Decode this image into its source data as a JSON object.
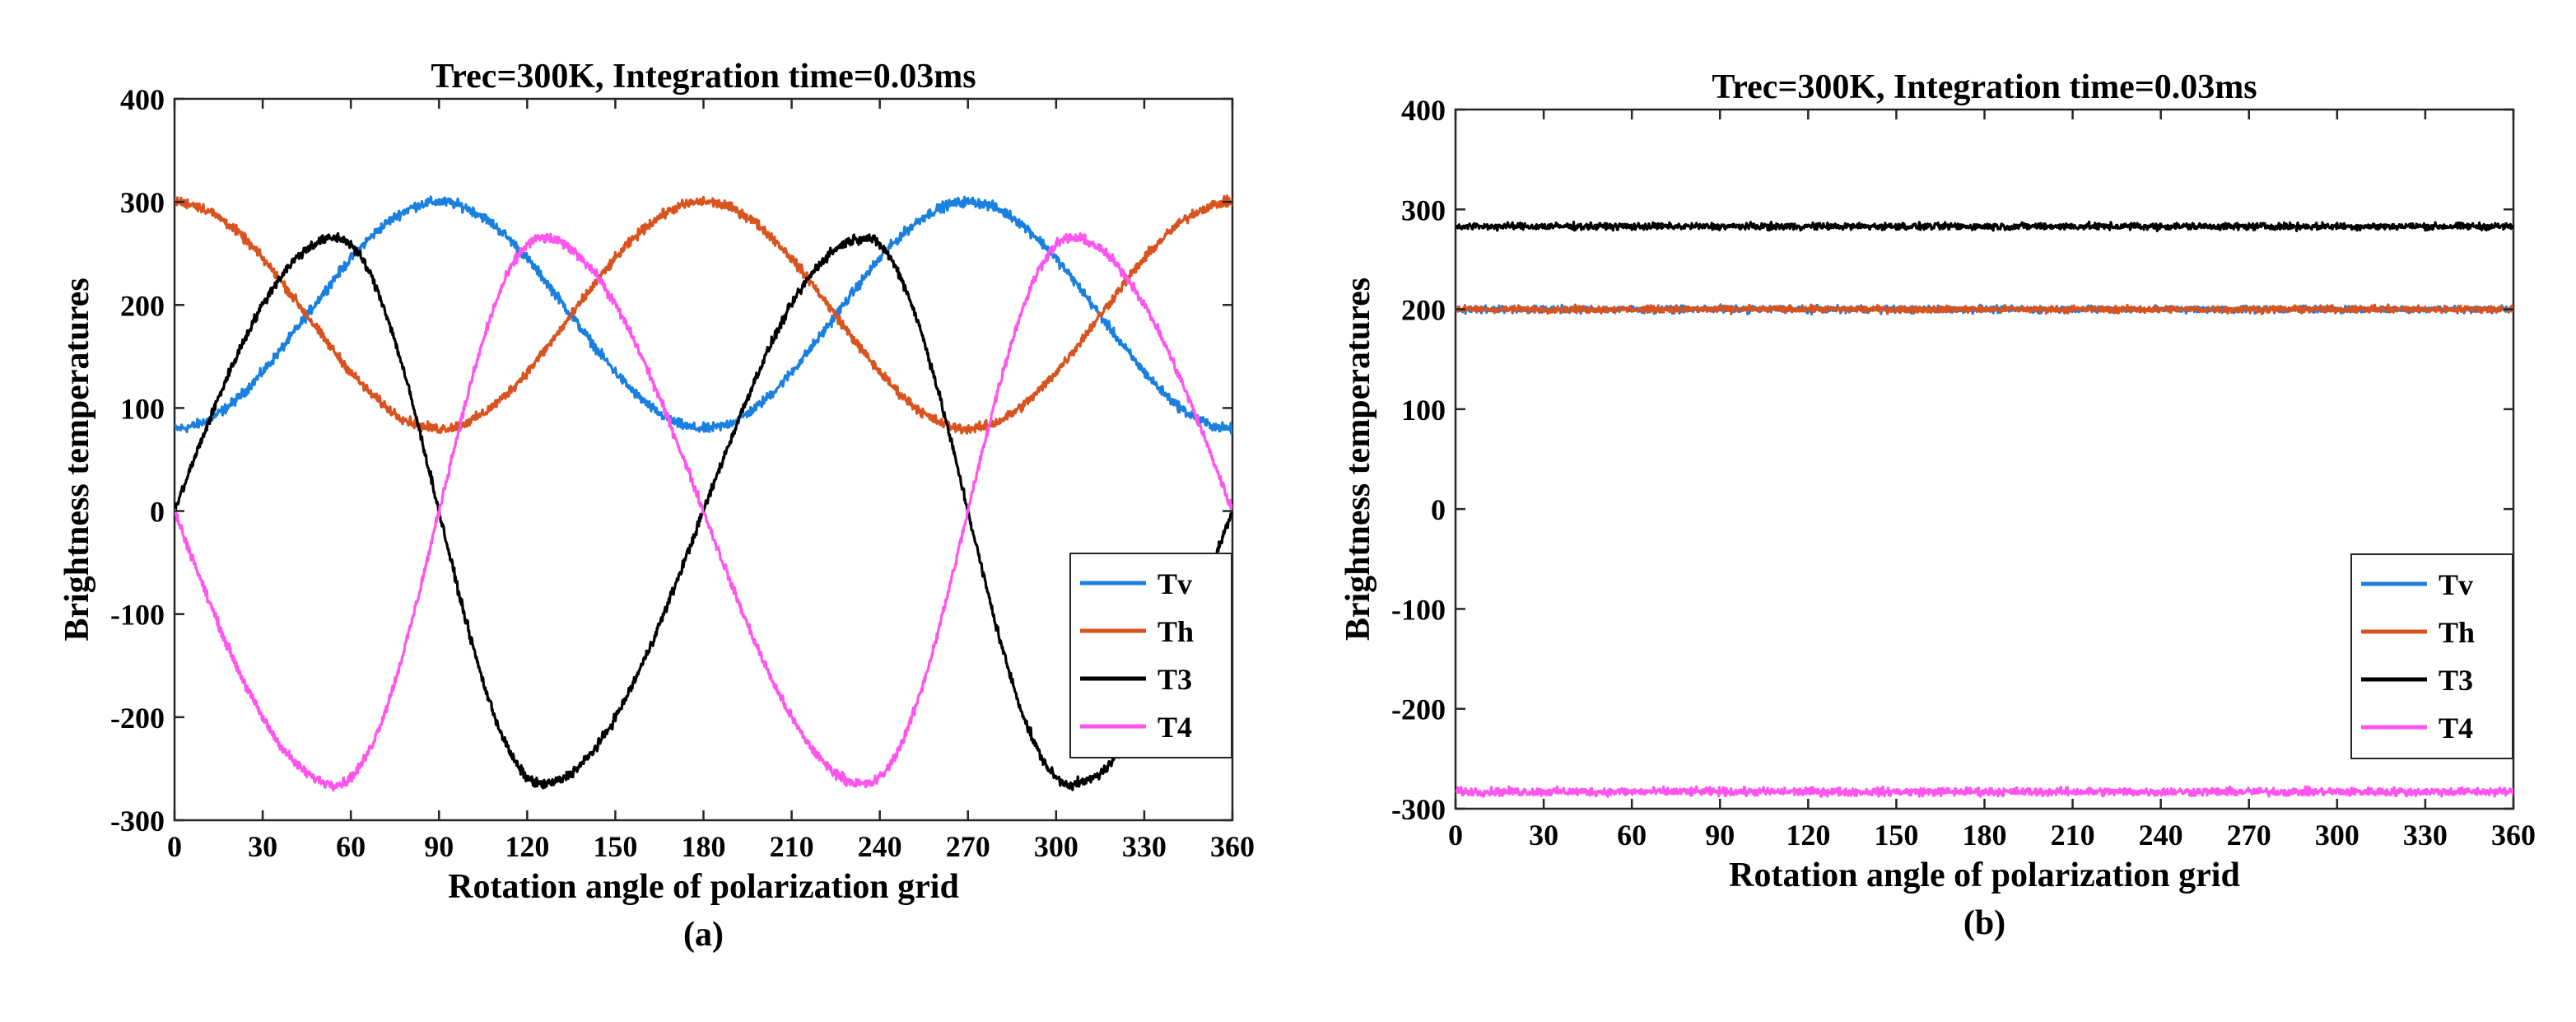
{
  "chart_data": [
    {
      "type": "line",
      "title": "Trec=300K, Integration time=0.03ms",
      "xlabel": "Rotation angle of polarization grid",
      "ylabel": "Brightness temperatures",
      "caption": "(a)",
      "xlim": [
        0,
        360
      ],
      "ylim": [
        -300,
        400
      ],
      "xticks": [
        0,
        30,
        60,
        90,
        120,
        150,
        180,
        210,
        240,
        270,
        300,
        330,
        360
      ],
      "yticks": [
        -300,
        -200,
        -100,
        0,
        100,
        200,
        300,
        400
      ],
      "legend_position": "right",
      "series": [
        {
          "name": "Tv",
          "color": "#1a80e0",
          "model": "190-110*cos(2x)",
          "x": [
            0,
            45,
            90,
            135,
            180,
            225,
            270,
            315,
            360
          ],
          "values": [
            80,
            190,
            300,
            190,
            80,
            190,
            300,
            190,
            80
          ]
        },
        {
          "name": "Th",
          "color": "#d9531e",
          "model": "190+110*cos(2x)",
          "x": [
            0,
            45,
            90,
            135,
            180,
            225,
            270,
            315,
            360
          ],
          "values": [
            300,
            190,
            80,
            190,
            300,
            190,
            80,
            190,
            300
          ]
        },
        {
          "name": "T3",
          "color": "#000000",
          "model": "270*sin(... with peaks near 55/235 and troughs near 125/305)",
          "x": [
            0,
            55,
            90,
            125,
            180,
            235,
            270,
            305,
            360
          ],
          "values": [
            0,
            265,
            0,
            -265,
            0,
            265,
            0,
            -265,
            0
          ]
        },
        {
          "name": "T4",
          "color": "#ff55ee",
          "model": "-T3 shape, troughs near 55/235 and peaks near 125/305",
          "x": [
            0,
            55,
            90,
            125,
            180,
            235,
            270,
            305,
            360
          ],
          "values": [
            0,
            -265,
            0,
            265,
            0,
            -265,
            0,
            265,
            0
          ]
        }
      ]
    },
    {
      "type": "line",
      "title": "Trec=300K, Integration time=0.03ms",
      "xlabel": "Rotation angle of polarization grid",
      "ylabel": "Brightness temperatures",
      "caption": "(b)",
      "xlim": [
        0,
        360
      ],
      "ylim": [
        -300,
        400
      ],
      "xticks": [
        0,
        30,
        60,
        90,
        120,
        150,
        180,
        210,
        240,
        270,
        300,
        330,
        360
      ],
      "yticks": [
        -300,
        -200,
        -100,
        0,
        100,
        200,
        300,
        400
      ],
      "legend_position": "bottom-right",
      "series": [
        {
          "name": "Tv",
          "color": "#1a80e0",
          "x": [
            0,
            360
          ],
          "values": [
            200,
            200
          ]
        },
        {
          "name": "Th",
          "color": "#d9531e",
          "x": [
            0,
            360
          ],
          "values": [
            200,
            200
          ]
        },
        {
          "name": "T3",
          "color": "#000000",
          "x": [
            0,
            360
          ],
          "values": [
            283,
            283
          ]
        },
        {
          "name": "T4",
          "color": "#ff55ee",
          "x": [
            0,
            360
          ],
          "values": [
            -283,
            -283
          ]
        }
      ]
    }
  ]
}
